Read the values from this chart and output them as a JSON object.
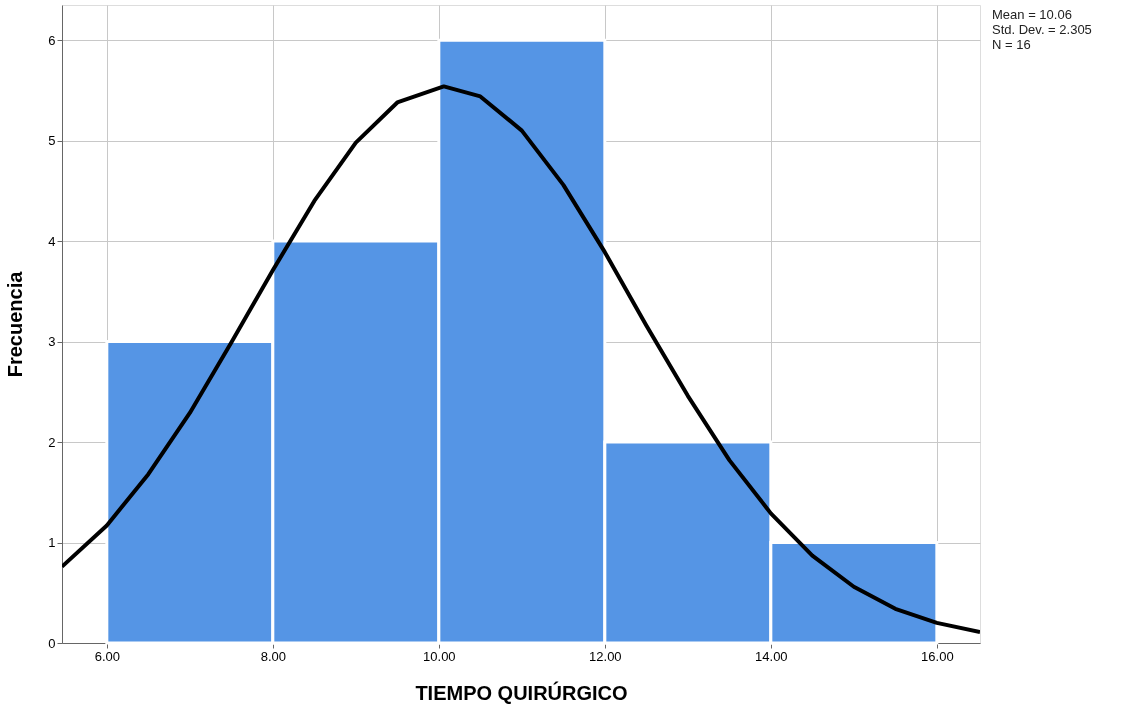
{
  "chart_data": {
    "type": "histogram",
    "xlabel": "TIEMPO QUIRÚRGICO",
    "ylabel": "Frecuencia",
    "bins": [
      6,
      8,
      10,
      12,
      14,
      16
    ],
    "values": [
      3,
      4,
      6,
      2,
      1
    ],
    "color": "#5595e5",
    "series": [
      {
        "type": "line",
        "color": "#000000",
        "x": [
          5.46,
          6,
          6.5,
          7,
          7.5,
          8,
          8.5,
          9,
          9.5,
          10.06,
          10.5,
          11,
          11.5,
          12,
          12.5,
          13,
          13.5,
          14,
          14.5,
          15,
          15.5,
          16,
          16.52
        ],
        "values": [
          0.76,
          1.17,
          1.68,
          2.29,
          2.99,
          3.71,
          4.4,
          4.98,
          5.38,
          5.54,
          5.44,
          5.1,
          4.56,
          3.89,
          3.16,
          2.46,
          1.82,
          1.29,
          0.87,
          0.56,
          0.34,
          0.2,
          0.11
        ]
      }
    ],
    "xlim": [
      5.46,
      16.52
    ],
    "ylim": [
      0,
      6.35
    ],
    "xticks": [
      {
        "value": 6,
        "label": "6.00"
      },
      {
        "value": 8,
        "label": "8.00"
      },
      {
        "value": 10,
        "label": "10.00"
      },
      {
        "value": 12,
        "label": "12.00"
      },
      {
        "value": 14,
        "label": "14.00"
      },
      {
        "value": 16,
        "label": "16.00"
      }
    ],
    "yticks": [
      0,
      1,
      2,
      3,
      4,
      5,
      6
    ],
    "grid": true,
    "line_style": "solid",
    "annotations": [
      "Mean = 10.06",
      "Std. Dev. = 2.305",
      "N = 16"
    ]
  }
}
